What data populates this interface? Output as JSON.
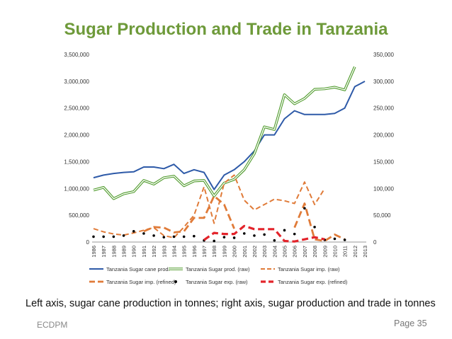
{
  "slide": {
    "title": "Sugar Production and Trade in Tanzania",
    "caption": "Left axis, sugar cane production in tonnes; right axis, sugar production and trade in tonnes",
    "footer_left": "ECDPM",
    "footer_right": "Page 35"
  },
  "chart_data": {
    "type": "line",
    "title": "Sugar Production and Trade in Tanzania",
    "x": [
      1986,
      1987,
      1988,
      1989,
      1990,
      1991,
      1992,
      1993,
      1994,
      1995,
      1996,
      1997,
      1998,
      1999,
      2000,
      2001,
      2002,
      2003,
      2004,
      2005,
      2006,
      2007,
      2008,
      2009,
      2010,
      2011,
      2012,
      2013
    ],
    "x_tick_labels": [
      "1986",
      "1987",
      "1988",
      "1989",
      "1990",
      "1991",
      "1992",
      "1993",
      "1994",
      "1995",
      "1996",
      "1997",
      "1998",
      "1999",
      "2000",
      "2001",
      "2002",
      "2003",
      "2004",
      "2005",
      "2006",
      "2007",
      "2008",
      "2009",
      "2010",
      "2011",
      "2012",
      "2013"
    ],
    "y_left": {
      "range": [
        0,
        3500000
      ],
      "ticks": [
        "0",
        "500,000",
        "1,000,000",
        "1,500,000",
        "2,000,000",
        "2,500,000",
        "3,000,000",
        "3,500,000"
      ]
    },
    "y_right": {
      "range": [
        0,
        350000
      ],
      "ticks": [
        "0",
        "50,000",
        "100,000",
        "150,000",
        "200,000",
        "250,000",
        "300,000",
        "350,000"
      ]
    },
    "legend_position": "bottom",
    "grid": false,
    "series": [
      {
        "name": "Tanzania Sugar cane prod.",
        "axis": "left",
        "style": "solid",
        "color": "#2e5aa8",
        "values": [
          1200000,
          1250000,
          1280000,
          1300000,
          1310000,
          1400000,
          1400000,
          1370000,
          1450000,
          1280000,
          1350000,
          1300000,
          980000,
          1250000,
          1350000,
          1500000,
          1700000,
          2000000,
          2000000,
          2300000,
          2450000,
          2380000,
          2380000,
          2380000,
          2400000,
          2500000,
          2900000,
          3000000
        ]
      },
      {
        "name": "Tanzania Sugar prod. (raw)",
        "axis": "right",
        "style": "double",
        "color": "#4e9a2a",
        "values": [
          97000,
          102000,
          81000,
          90000,
          94000,
          115000,
          108000,
          120000,
          123000,
          105000,
          114000,
          115000,
          86000,
          110000,
          117000,
          135000,
          165000,
          215000,
          210000,
          275000,
          258000,
          268000,
          285000,
          286000,
          289000,
          284000,
          327000,
          null
        ]
      },
      {
        "name": "Tanzania Sugar imp. (raw)",
        "axis": "right",
        "style": "dash",
        "color": "#e07b39",
        "values": [
          25000,
          19000,
          15000,
          13000,
          17000,
          22000,
          27000,
          12000,
          8000,
          28000,
          50000,
          103000,
          35000,
          110000,
          125000,
          78000,
          60000,
          70000,
          80000,
          77000,
          72000,
          112000,
          70000,
          100000,
          null,
          null,
          null,
          null
        ]
      },
      {
        "name": "Tanzania Sugar imp. (refined)",
        "axis": "right",
        "style": "longdash",
        "color": "#e07b39",
        "values": [
          null,
          null,
          null,
          null,
          null,
          20000,
          28000,
          27000,
          18000,
          20000,
          45000,
          45000,
          86000,
          70000,
          25000,
          null,
          null,
          null,
          null,
          null,
          27000,
          72000,
          5000,
          2000,
          14000,
          5000,
          null,
          null
        ]
      },
      {
        "name": "Tanzania Sugar exp. (raw)",
        "axis": "right",
        "style": "dot",
        "color": "#000000",
        "values": [
          10000,
          10000,
          10000,
          12000,
          20000,
          16000,
          12000,
          9000,
          10000,
          10000,
          11000,
          3000,
          2000,
          9000,
          8000,
          16000,
          12000,
          14000,
          3000,
          22000,
          15000,
          63000,
          28000,
          4000,
          6000,
          4000,
          null,
          null
        ]
      },
      {
        "name": "Tanzania Sugar exp. (refined)",
        "axis": "right",
        "style": "boldash",
        "color": "#e3242b",
        "values": [
          null,
          null,
          null,
          null,
          null,
          null,
          null,
          null,
          null,
          null,
          null,
          4000,
          17000,
          15000,
          15000,
          30000,
          24000,
          24000,
          24000,
          2000,
          1000,
          5000,
          9000,
          5000,
          null,
          null,
          null,
          null
        ]
      }
    ]
  }
}
